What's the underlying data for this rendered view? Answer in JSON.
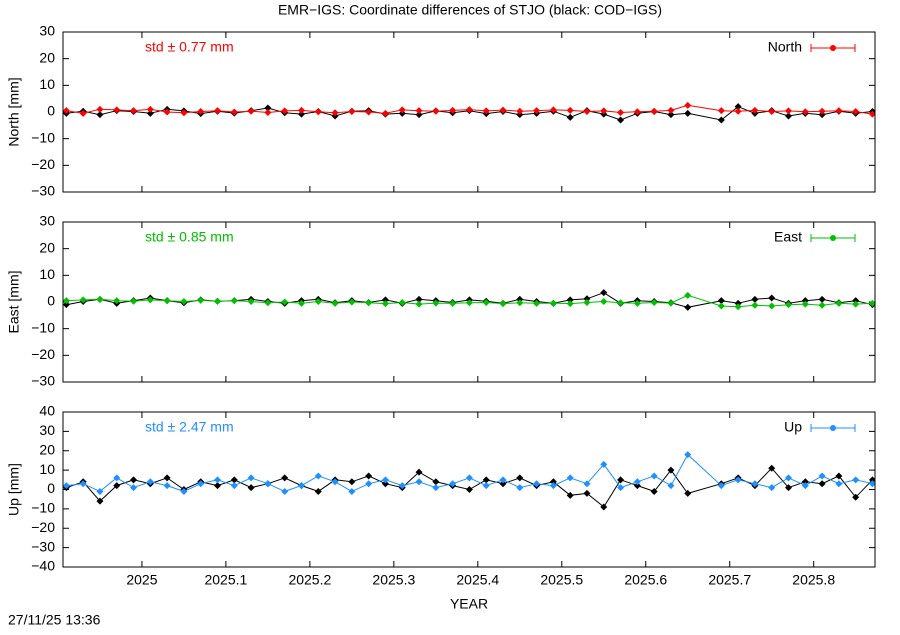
{
  "title": "EMR−IGS: Coordinate differences of STJO (black: COD−IGS)",
  "timestamp": "27/11/25 13:36",
  "chart_data": [
    {
      "type": "line",
      "ylabel": "North [mm]",
      "annotation": "std ± 0.77 mm",
      "annotation_color": "#ff0000",
      "xlim": [
        2024.906,
        2025.873
      ],
      "xticks": [
        2025,
        2025.1,
        2025.2,
        2025.3,
        2025.4,
        2025.5,
        2025.6,
        2025.7,
        2025.8
      ],
      "ylim": [
        -30,
        30
      ],
      "yticks": [
        {
          "value": -30,
          "label": "−30"
        },
        {
          "value": -20,
          "label": "−20"
        },
        {
          "value": -10,
          "label": "−10"
        },
        0,
        10,
        20,
        30
      ],
      "x": [
        2024.91,
        2024.93,
        2024.95,
        2024.97,
        2024.99,
        2025.01,
        2025.03,
        2025.05,
        2025.07,
        2025.09,
        2025.11,
        2025.13,
        2025.15,
        2025.17,
        2025.19,
        2025.21,
        2025.23,
        2025.25,
        2025.27,
        2025.29,
        2025.31,
        2025.33,
        2025.35,
        2025.37,
        2025.39,
        2025.41,
        2025.43,
        2025.45,
        2025.47,
        2025.49,
        2025.51,
        2025.53,
        2025.55,
        2025.57,
        2025.59,
        2025.61,
        2025.63,
        2025.65,
        2025.69,
        2025.71,
        2025.73,
        2025.75,
        2025.77,
        2025.79,
        2025.81,
        2025.83,
        2025.85,
        2025.87
      ],
      "series": [
        {
          "color": "#000000",
          "values": [
            -0.5,
            0.3,
            -1,
            0.5,
            0.2,
            -0.5,
            1,
            0.4,
            -0.6,
            0.3,
            -0.4,
            0.5,
            1.5,
            -0.3,
            -0.8,
            0.2,
            -1.5,
            0.3,
            0.5,
            -0.8,
            -0.5,
            -1,
            0.4,
            -0.3,
            0.5,
            -0.6,
            0.2,
            -1,
            -0.5,
            0.3,
            -2,
            0.5,
            -0.8,
            -3,
            -0.5,
            0.2,
            -1,
            -0.5,
            -3,
            2,
            -0.5,
            0.5,
            -1.5,
            -0.5,
            -1,
            0.3,
            -0.5,
            0.2
          ]
        },
        {
          "name": "North",
          "color": "#ff0000",
          "values": [
            0.5,
            -0.5,
            1,
            0.8,
            0.5,
            1,
            0,
            -0.3,
            0.2,
            0.5,
            0,
            0.3,
            -0.2,
            0.4,
            0.6,
            0.1,
            -0.3,
            0.2,
            0,
            -0.5,
            0.8,
            0.5,
            0.3,
            0.6,
            0.9,
            0.4,
            0.7,
            0.3,
            0.5,
            0.8,
            0.6,
            0.2,
            0.4,
            -0.2,
            0.1,
            0.3,
            0.6,
            2.5,
            0.5,
            0.3,
            0.6,
            0.2,
            0.4,
            0.1,
            0.3,
            0.5,
            0.2,
            -0.8
          ]
        }
      ]
    },
    {
      "type": "line",
      "ylabel": "East [mm]",
      "annotation": "std ± 0.85 mm",
      "annotation_color": "#00c000",
      "xlim": [
        2024.906,
        2025.873
      ],
      "xticks": [
        2025,
        2025.1,
        2025.2,
        2025.3,
        2025.4,
        2025.5,
        2025.6,
        2025.7,
        2025.8
      ],
      "ylim": [
        -30,
        30
      ],
      "yticks": [
        {
          "value": -30,
          "label": "−30"
        },
        {
          "value": -20,
          "label": "−20"
        },
        {
          "value": -10,
          "label": "−10"
        },
        0,
        10,
        20,
        30
      ],
      "x": [
        2024.91,
        2024.93,
        2024.95,
        2024.97,
        2024.99,
        2025.01,
        2025.03,
        2025.05,
        2025.07,
        2025.09,
        2025.11,
        2025.13,
        2025.15,
        2025.17,
        2025.19,
        2025.21,
        2025.23,
        2025.25,
        2025.27,
        2025.29,
        2025.31,
        2025.33,
        2025.35,
        2025.37,
        2025.39,
        2025.41,
        2025.43,
        2025.45,
        2025.47,
        2025.49,
        2025.51,
        2025.53,
        2025.55,
        2025.57,
        2025.59,
        2025.61,
        2025.63,
        2025.65,
        2025.69,
        2025.71,
        2025.73,
        2025.75,
        2025.77,
        2025.79,
        2025.81,
        2025.83,
        2025.85,
        2025.87
      ],
      "series": [
        {
          "color": "#000000",
          "values": [
            -1,
            0.2,
            1,
            -0.5,
            0.5,
            1.5,
            0.5,
            -0.3,
            0.8,
            0.3,
            0.5,
            1,
            0.2,
            -0.5,
            0.5,
            1,
            -0.3,
            0.5,
            -0.2,
            0.8,
            -0.5,
            1,
            0.5,
            -0.2,
            0.8,
            0.3,
            -0.5,
            1,
            0.2,
            -0.5,
            0.8,
            1.2,
            3.5,
            -0.5,
            0.5,
            0.2,
            -0.3,
            -2,
            0.5,
            -0.5,
            1,
            1.5,
            -0.5,
            0.5,
            1,
            -0.3,
            0.5,
            -1
          ]
        },
        {
          "name": "East",
          "color": "#00c000",
          "values": [
            0.5,
            0.8,
            1,
            0.5,
            0.3,
            0.8,
            0.5,
            0.2,
            0.6,
            0.3,
            0.5,
            0.2,
            -0.3,
            0,
            -0.5,
            0.2,
            -0.5,
            0,
            -0.3,
            -0.6,
            -0.2,
            -0.8,
            -0.4,
            -0.5,
            -0.3,
            -0.2,
            -0.6,
            -0.3,
            -0.5,
            -0.4,
            -0.6,
            -0.2,
            0.2,
            -0.3,
            -0.5,
            -0.2,
            -0.4,
            2.5,
            -1.5,
            -1.8,
            -1.2,
            -1.5,
            -1,
            -0.8,
            -1.2,
            -0.5,
            -0.8,
            -0.5
          ]
        }
      ]
    },
    {
      "type": "line",
      "ylabel": "Up [mm]",
      "annotation": "std ± 2.47 mm",
      "annotation_color": "#1e90ff",
      "xlabel": "YEAR",
      "xlim": [
        2024.906,
        2025.873
      ],
      "xticks": [
        2025,
        2025.1,
        2025.2,
        2025.3,
        2025.4,
        2025.5,
        2025.6,
        2025.7,
        2025.8
      ],
      "ylim": [
        -40,
        40
      ],
      "yticks": [
        {
          "value": -40,
          "label": "−40"
        },
        {
          "value": -30,
          "label": "−30"
        },
        {
          "value": -20,
          "label": "−20"
        },
        {
          "value": -10,
          "label": "−10"
        },
        0,
        10,
        20,
        30,
        40
      ],
      "x": [
        2024.91,
        2024.93,
        2024.95,
        2024.97,
        2024.99,
        2025.01,
        2025.03,
        2025.05,
        2025.07,
        2025.09,
        2025.11,
        2025.13,
        2025.15,
        2025.17,
        2025.19,
        2025.21,
        2025.23,
        2025.25,
        2025.27,
        2025.29,
        2025.31,
        2025.33,
        2025.35,
        2025.37,
        2025.39,
        2025.41,
        2025.43,
        2025.45,
        2025.47,
        2025.49,
        2025.51,
        2025.53,
        2025.55,
        2025.57,
        2025.59,
        2025.61,
        2025.63,
        2025.65,
        2025.69,
        2025.71,
        2025.73,
        2025.75,
        2025.77,
        2025.79,
        2025.81,
        2025.83,
        2025.85,
        2025.87
      ],
      "series": [
        {
          "color": "#000000",
          "values": [
            1,
            4,
            -6,
            2,
            5,
            3,
            6,
            0,
            4,
            2,
            5,
            1,
            3,
            6,
            2,
            -1,
            5,
            4,
            7,
            3,
            1,
            9,
            4,
            2,
            0,
            5,
            3,
            6,
            2,
            4,
            -3,
            -2,
            -9,
            5,
            2,
            -1,
            10,
            -2,
            3,
            6,
            2,
            11,
            1,
            4,
            3,
            7,
            -4,
            5
          ]
        },
        {
          "name": "Up",
          "color": "#1e90ff",
          "values": [
            2,
            3,
            -1,
            6,
            1,
            4,
            2,
            -1,
            3,
            5,
            2,
            6,
            3,
            -1,
            2,
            7,
            4,
            -1,
            3,
            5,
            2,
            4,
            1,
            3,
            6,
            2,
            5,
            1,
            3,
            2,
            6,
            3,
            13,
            1,
            4,
            7,
            2,
            18,
            2,
            5,
            3,
            1,
            6,
            2,
            7,
            3,
            5,
            3
          ]
        }
      ]
    }
  ]
}
